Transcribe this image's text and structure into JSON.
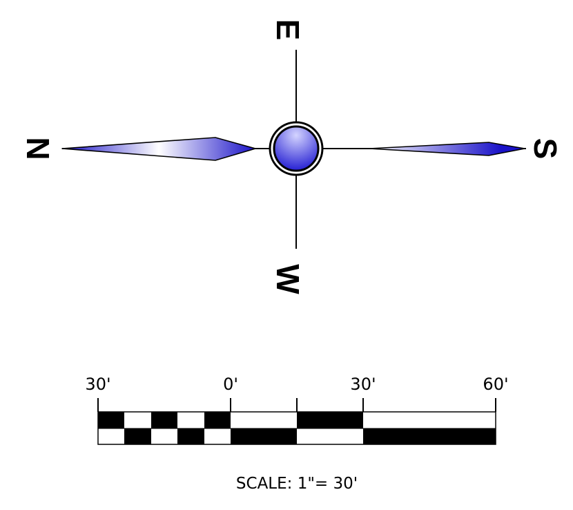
{
  "compass": {
    "labels": {
      "north": "N",
      "east": "E",
      "south": "S",
      "west": "W"
    },
    "colors": {
      "needle_dark": "#1a12c8",
      "needle_light": "#ffffff",
      "hub_light": "#c9c9ff",
      "hub_dark": "#1a14d0",
      "outline": "#000000"
    }
  },
  "scale_bar": {
    "tick_labels": [
      "30'",
      "0'",
      "30'",
      "60'"
    ],
    "caption": "SCALE: 1\"= 30'",
    "colors": {
      "fill": "#000000",
      "blank": "#ffffff"
    }
  }
}
